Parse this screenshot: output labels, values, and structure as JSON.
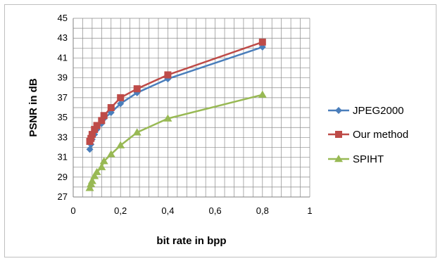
{
  "chart_data": {
    "type": "line",
    "title": "",
    "xlabel": "bit rate in bpp",
    "ylabel": "PSNR in dB",
    "xlim": [
      0,
      1
    ],
    "ylim": [
      27,
      45
    ],
    "x_ticks": [
      "0",
      "0,2",
      "0,4",
      "0,6",
      "0,8",
      "1"
    ],
    "y_ticks": [
      "27",
      "29",
      "31",
      "33",
      "35",
      "37",
      "39",
      "41",
      "43",
      "45"
    ],
    "grid": true,
    "legend_position": "right",
    "series": [
      {
        "name": "JPEG2000",
        "color": "#4a7ebb",
        "marker": "diamond",
        "points": [
          [
            0.07,
            31.8
          ],
          [
            0.075,
            32.3
          ],
          [
            0.08,
            32.8
          ],
          [
            0.09,
            33.3
          ],
          [
            0.1,
            33.8
          ],
          [
            0.12,
            34.4
          ],
          [
            0.13,
            34.9
          ],
          [
            0.16,
            35.5
          ],
          [
            0.2,
            36.4
          ],
          [
            0.27,
            37.5
          ],
          [
            0.4,
            38.9
          ],
          [
            0.8,
            42.1
          ]
        ]
      },
      {
        "name": "Our method",
        "color": "#be4b48",
        "marker": "square",
        "points": [
          [
            0.07,
            32.6
          ],
          [
            0.075,
            32.9
          ],
          [
            0.08,
            33.3
          ],
          [
            0.09,
            33.8
          ],
          [
            0.1,
            34.2
          ],
          [
            0.12,
            34.7
          ],
          [
            0.13,
            35.2
          ],
          [
            0.16,
            36.0
          ],
          [
            0.2,
            37.0
          ],
          [
            0.27,
            37.9
          ],
          [
            0.4,
            39.3
          ],
          [
            0.8,
            42.6
          ]
        ]
      },
      {
        "name": "SPIHT",
        "color": "#98b954",
        "marker": "triangle",
        "points": [
          [
            0.07,
            27.9
          ],
          [
            0.075,
            28.3
          ],
          [
            0.08,
            28.6
          ],
          [
            0.09,
            29.1
          ],
          [
            0.1,
            29.5
          ],
          [
            0.12,
            30.0
          ],
          [
            0.13,
            30.6
          ],
          [
            0.16,
            31.3
          ],
          [
            0.2,
            32.2
          ],
          [
            0.27,
            33.5
          ],
          [
            0.4,
            34.9
          ],
          [
            0.8,
            37.3
          ]
        ]
      }
    ]
  }
}
